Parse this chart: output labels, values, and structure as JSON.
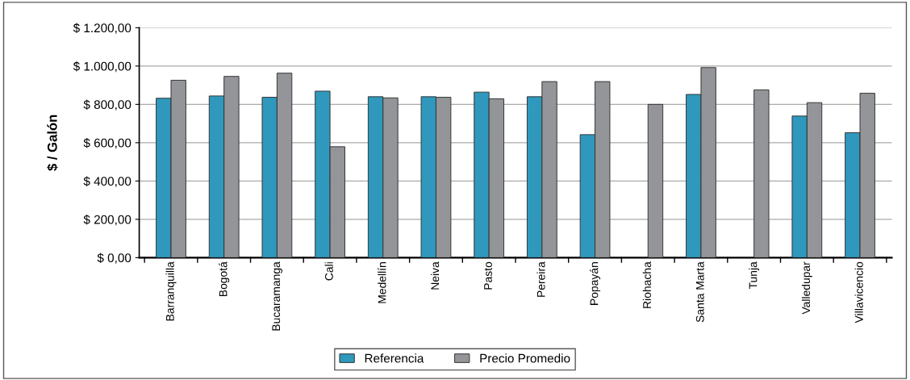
{
  "chart_data": {
    "type": "bar",
    "ylabel": "$ / Galón",
    "categories": [
      "Barranquilla",
      "Bogotá",
      "Bucaramanga",
      "Cali",
      "Medellín",
      "Neiva",
      "Pasto",
      "Pereira",
      "Popayán",
      "Riohacha",
      "Santa Marta",
      "Tunja",
      "Valledupar",
      "Villavicencio"
    ],
    "series": [
      {
        "name": "Referencia",
        "color": "#3098bd",
        "values": [
          832,
          844,
          837,
          869,
          840,
          840,
          864,
          840,
          642,
          null,
          852,
          null,
          739,
          652
        ]
      },
      {
        "name": "Precio Promedio",
        "color": "#939598",
        "values": [
          926,
          946,
          963,
          579,
          834,
          837,
          829,
          919,
          919,
          800,
          992,
          876,
          809,
          858
        ]
      }
    ],
    "ylim": [
      0,
      1200
    ],
    "yticks": [
      {
        "value": 0,
        "label": "$ 0,00"
      },
      {
        "value": 200,
        "label": "$ 200,00"
      },
      {
        "value": 400,
        "label": "$ 400,00"
      },
      {
        "value": 600,
        "label": "$ 600,00"
      },
      {
        "value": 800,
        "label": "$ 800,00"
      },
      {
        "value": 1000,
        "label": "$ 1.000,00"
      },
      {
        "value": 1200,
        "label": "$ 1.200,00"
      }
    ],
    "grid": "y",
    "legend": "bottom"
  }
}
